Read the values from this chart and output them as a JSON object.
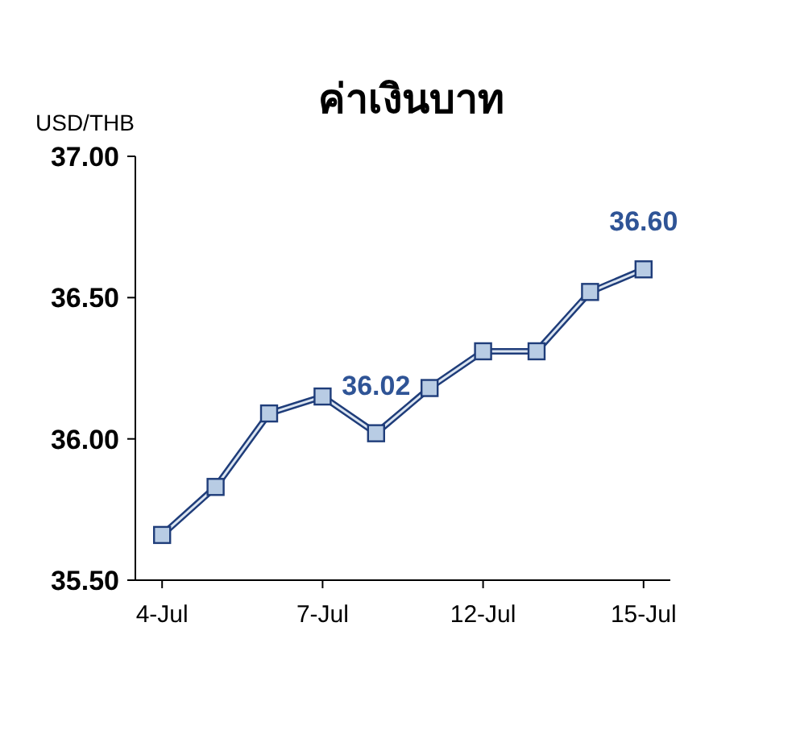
{
  "chart_data": {
    "type": "line",
    "title": "ค่าเงินบาท",
    "ylabel": "USD/THB",
    "categories": [
      "4-Jul",
      null,
      null,
      "7-Jul",
      null,
      null,
      "12-Jul",
      null,
      null,
      "15-Jul"
    ],
    "series": [
      {
        "color": "#1f3d7a",
        "values": [
          35.66,
          35.83,
          36.09,
          36.15,
          36.02,
          36.18,
          36.31,
          36.31,
          36.52,
          36.6
        ],
        "value_labels": [
          null,
          null,
          null,
          null,
          "36.02",
          null,
          null,
          null,
          null,
          "36.60"
        ]
      }
    ],
    "ylim": [
      35.5,
      37.0
    ],
    "yticks": [
      {
        "value": 35.5,
        "label": "35.50"
      },
      {
        "value": 36.0,
        "label": "36.00"
      },
      {
        "value": 36.5,
        "label": "36.50"
      },
      {
        "value": 37.0,
        "label": "37.00"
      }
    ],
    "marker": "square",
    "line_style": "solid",
    "grid": false
  }
}
